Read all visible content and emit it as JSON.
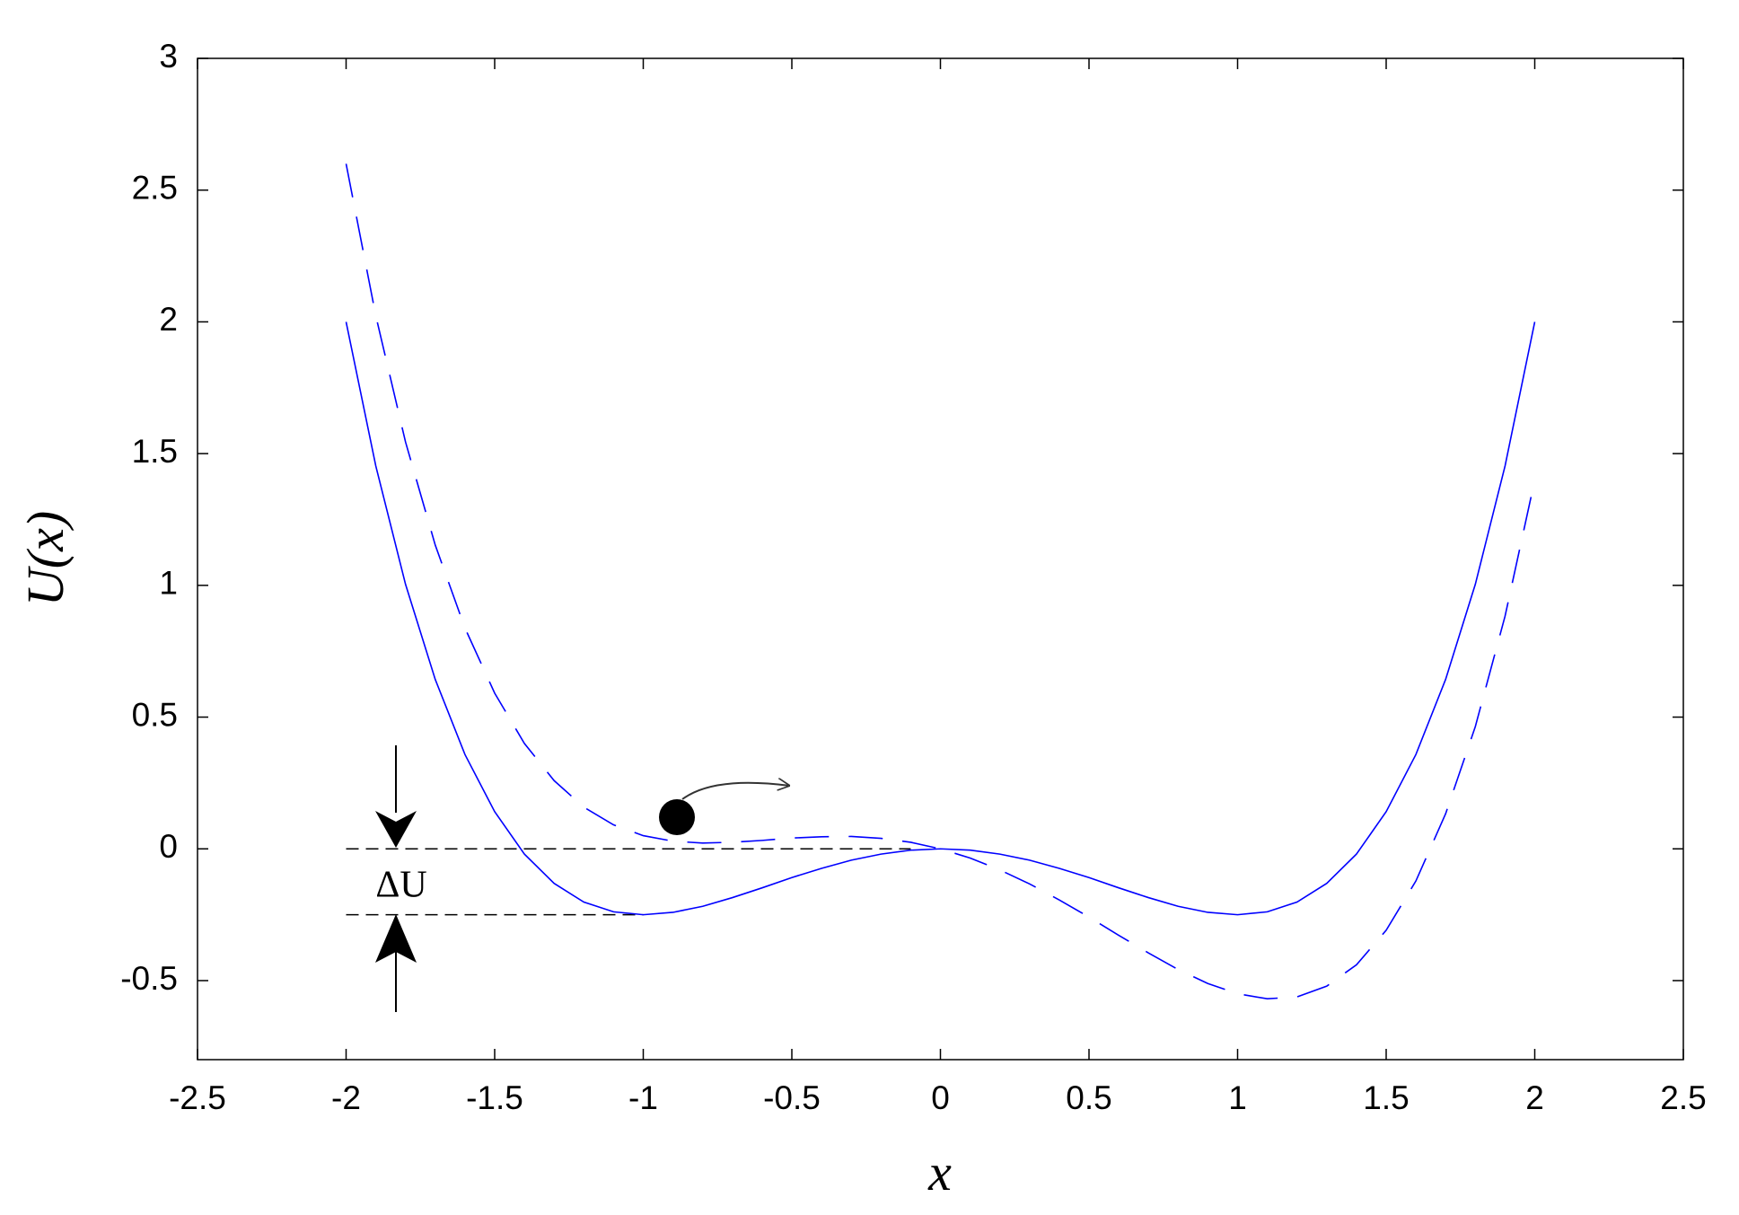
{
  "chart_data": {
    "type": "line",
    "xlabel": "x",
    "ylabel": "U(x)",
    "x": [
      -2,
      -1.9,
      -1.8,
      -1.7,
      -1.6,
      -1.5,
      -1.4,
      -1.3,
      -1.2,
      -1.1,
      -1,
      -0.9,
      -0.8,
      -0.7,
      -0.6,
      -0.5,
      -0.4,
      -0.3,
      -0.2,
      -0.1,
      0,
      0.1,
      0.2,
      0.3,
      0.4,
      0.5,
      0.6,
      0.7,
      0.8,
      0.9,
      1,
      1.1,
      1.2,
      1.3,
      1.4,
      1.5,
      1.6,
      1.7,
      1.8,
      1.9,
      2
    ],
    "series": [
      {
        "color": "#0000ff",
        "dash": false,
        "values": [
          2,
          1.453,
          1.004,
          0.643,
          0.358,
          0.141,
          -0.02,
          -0.131,
          -0.202,
          -0.239,
          -0.25,
          -0.241,
          -0.218,
          -0.185,
          -0.148,
          -0.109,
          -0.074,
          -0.043,
          -0.02,
          -0.005,
          0,
          -0.005,
          -0.02,
          -0.043,
          -0.074,
          -0.109,
          -0.148,
          -0.185,
          -0.218,
          -0.241,
          -0.25,
          -0.239,
          -0.202,
          -0.131,
          -0.02,
          0.141,
          0.358,
          0.643,
          1.004,
          1.453,
          2
        ]
      },
      {
        "color": "#0000ff",
        "dash": true,
        "values": [
          2.6,
          2.023,
          1.544,
          1.153,
          0.838,
          0.591,
          0.4,
          0.259,
          0.158,
          0.091,
          0.05,
          0.029,
          0.022,
          0.025,
          0.032,
          0.041,
          0.046,
          0.047,
          0.04,
          0.025,
          0,
          -0.035,
          -0.08,
          -0.133,
          -0.194,
          -0.259,
          -0.328,
          -0.395,
          -0.458,
          -0.511,
          -0.55,
          -0.569,
          -0.562,
          -0.521,
          -0.44,
          -0.309,
          -0.122,
          0.133,
          0.464,
          0.883,
          1.4
        ]
      }
    ],
    "reference_lines": [
      {
        "y": 0,
        "x": [
          -2,
          -0.1
        ]
      },
      {
        "y": -0.25,
        "x": [
          -2,
          -1
        ]
      }
    ],
    "annotation": "ΔU",
    "xlim": [
      -2.5,
      2.5
    ],
    "xticks": [
      -2.5,
      -2,
      -1.5,
      -1,
      -0.5,
      0,
      0.5,
      1,
      1.5,
      2,
      2.5
    ],
    "ylim": [
      -0.8,
      3
    ],
    "yticks": [
      -0.5,
      0,
      0.5,
      1,
      1.5,
      2,
      2.5,
      3
    ]
  }
}
